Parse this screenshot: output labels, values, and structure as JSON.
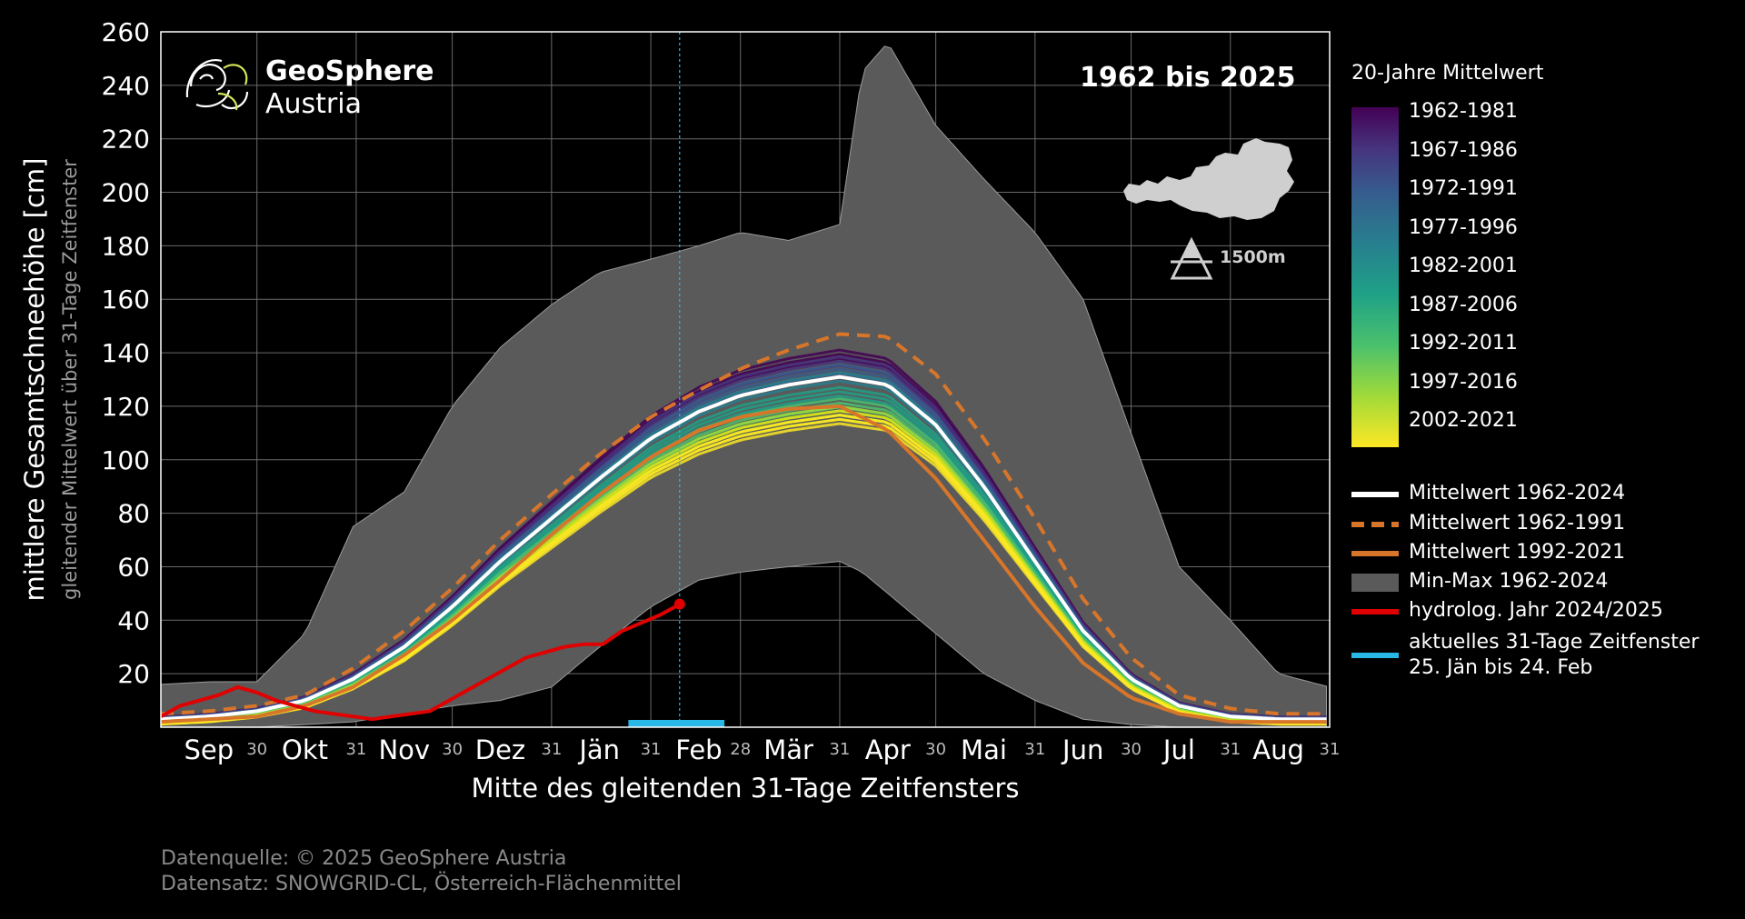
{
  "chart_data": {
    "type": "line",
    "xlabel": "Mitte des gleitenden 31-Tage Zeitfensters",
    "ylabel": "mittlere Gesamtschneehöhe [cm]",
    "ylabel_sub": "gleitender Mittelwert über 31-Tage Zeitfenster",
    "period_title": "1962 bis 2025",
    "elevation_label": "1500m",
    "ylim": [
      0,
      260
    ],
    "yticks": [
      20,
      40,
      60,
      80,
      100,
      120,
      140,
      160,
      180,
      200,
      220,
      240,
      260
    ],
    "x_days": 365,
    "month_labels": [
      {
        "label": "Sep",
        "day": 15
      },
      {
        "label": "Okt",
        "day": 45
      },
      {
        "label": "Nov",
        "day": 76
      },
      {
        "label": "Dez",
        "day": 106
      },
      {
        "label": "Jän",
        "day": 137
      },
      {
        "label": "Feb",
        "day": 168
      },
      {
        "label": "Mär",
        "day": 196
      },
      {
        "label": "Apr",
        "day": 227
      },
      {
        "label": "Mai",
        "day": 257
      },
      {
        "label": "Jun",
        "day": 288
      },
      {
        "label": "Jul",
        "day": 318
      },
      {
        "label": "Aug",
        "day": 349
      }
    ],
    "month_end_labels": [
      {
        "label": "30",
        "day": 30
      },
      {
        "label": "31",
        "day": 61
      },
      {
        "label": "30",
        "day": 91
      },
      {
        "label": "31",
        "day": 122
      },
      {
        "label": "31",
        "day": 153
      },
      {
        "label": "28",
        "day": 181
      },
      {
        "label": "31",
        "day": 212
      },
      {
        "label": "30",
        "day": 242
      },
      {
        "label": "31",
        "day": 273
      },
      {
        "label": "30",
        "day": 303
      },
      {
        "label": "31",
        "day": 334
      },
      {
        "label": "31",
        "day": 365
      }
    ],
    "gridlines": true,
    "current_day": 162,
    "current_window": [
      146,
      176
    ],
    "minmax_band": {
      "x": [
        0,
        15,
        30,
        45,
        60,
        76,
        91,
        106,
        122,
        137,
        153,
        168,
        181,
        196,
        212,
        219,
        227,
        242,
        257,
        273,
        288,
        303,
        318,
        334,
        349,
        365
      ],
      "max": [
        16,
        17,
        17,
        35,
        75,
        88,
        120,
        142,
        158,
        170,
        175,
        180,
        185,
        182,
        188,
        245,
        256,
        225,
        205,
        185,
        160,
        110,
        60,
        40,
        20,
        15
      ],
      "min": [
        0,
        0,
        0,
        1,
        2,
        5,
        8,
        10,
        15,
        30,
        45,
        55,
        58,
        60,
        62,
        58,
        50,
        35,
        20,
        10,
        3,
        1,
        0,
        0,
        0,
        0
      ]
    },
    "mean_x": [
      0,
      15,
      30,
      45,
      60,
      76,
      91,
      106,
      122,
      137,
      153,
      168,
      181,
      196,
      212,
      227,
      242,
      257,
      273,
      288,
      303,
      318,
      334,
      349,
      365
    ],
    "series": [
      {
        "name": "Mittelwert 1962-2024",
        "color": "#ffffff",
        "dash": false,
        "width": 4,
        "values": [
          3,
          4,
          6,
          10,
          18,
          30,
          45,
          62,
          78,
          93,
          108,
          118,
          124,
          128,
          131,
          128,
          113,
          90,
          62,
          36,
          18,
          8,
          4,
          3,
          3
        ]
      },
      {
        "name": "Mittelwert 1962-1991",
        "color": "#d7762a",
        "dash": true,
        "width": 4,
        "values": [
          5,
          6,
          8,
          12,
          22,
          36,
          52,
          70,
          87,
          102,
          116,
          126,
          134,
          141,
          147,
          146,
          132,
          108,
          78,
          48,
          26,
          12,
          7,
          5,
          5
        ]
      },
      {
        "name": "Mittelwert 1992-2021",
        "color": "#d7762a",
        "dash": false,
        "width": 4,
        "values": [
          2,
          3,
          4,
          8,
          15,
          27,
          40,
          55,
          72,
          87,
          101,
          111,
          116,
          119,
          120,
          111,
          93,
          70,
          45,
          24,
          11,
          5,
          2,
          2,
          2
        ]
      },
      {
        "name": "hydrolog. Jahr 2024/2025",
        "color": "#e00000",
        "dash": false,
        "width": 4,
        "x": [
          0,
          6,
          12,
          18,
          24,
          30,
          36,
          42,
          48,
          54,
          60,
          66,
          72,
          78,
          84,
          90,
          96,
          102,
          108,
          114,
          120,
          126,
          132,
          138,
          144,
          150,
          156,
          162
        ],
        "values": [
          4,
          8,
          10,
          12,
          15,
          13,
          10,
          8,
          6,
          5,
          4,
          3,
          4,
          5,
          6,
          10,
          14,
          18,
          22,
          26,
          28,
          30,
          31,
          31,
          36,
          39,
          42,
          46
        ]
      }
    ],
    "climatology_bands": [
      {
        "name": "1962-1981",
        "color": "#440154",
        "scale": 1.06,
        "shift": 2
      },
      {
        "name": "1967-1986",
        "color": "#46337e",
        "scale": 1.04,
        "shift": 2
      },
      {
        "name": "1972-1991",
        "color": "#365c8d",
        "scale": 1.02,
        "shift": 1
      },
      {
        "name": "1977-1996",
        "color": "#277f8e",
        "scale": 1.0,
        "shift": 0
      },
      {
        "name": "1982-2001",
        "color": "#1fa187",
        "scale": 0.96,
        "shift": -1
      },
      {
        "name": "1987-2006",
        "color": "#4ac16d",
        "scale": 0.93,
        "shift": -2
      },
      {
        "name": "1992-2011",
        "color": "#a0da39",
        "scale": 0.91,
        "shift": -3
      },
      {
        "name": "1997-2016",
        "color": "#d8e219",
        "scale": 0.9,
        "shift": -4
      },
      {
        "name": "2002-2021",
        "color": "#fde725",
        "scale": 0.89,
        "shift": -5
      }
    ],
    "legend": {
      "title": "20-Jahre Mittelwert",
      "placement": "right",
      "items": [
        {
          "label": "Mittelwert 1962-2024",
          "color": "#ffffff",
          "kind": "line"
        },
        {
          "label": "Mittelwert 1962-1991",
          "color": "#d7762a",
          "kind": "dash"
        },
        {
          "label": "Mittelwert 1992-2021",
          "color": "#d7762a",
          "kind": "line"
        },
        {
          "label": "Min-Max 1962-2024",
          "color": "#5a5a5a",
          "kind": "patch"
        },
        {
          "label": "hydrolog. Jahr 2024/2025",
          "color": "#e00000",
          "kind": "line"
        },
        {
          "label": "aktuelles 31-Tage Zeitfenster",
          "label2": "25. Jän bis 24. Feb",
          "color": "#29b8e6",
          "kind": "line"
        }
      ]
    }
  },
  "logo": {
    "line1": "GeoSphere",
    "line2": "Austria"
  },
  "source": {
    "line1": "Datenquelle: © 2025 GeoSphere Austria",
    "line2": "Datensatz: SNOWGRID-CL, Österreich-Flächenmittel"
  },
  "colors": {
    "background": "#000000",
    "band": "#5a5a5a",
    "grid": "#6a6a6a",
    "current": "#29b8e6"
  }
}
